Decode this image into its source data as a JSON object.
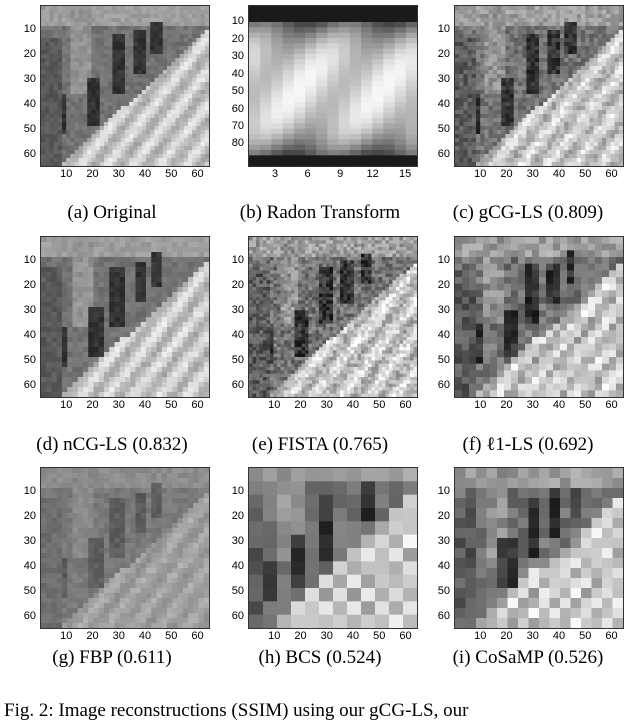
{
  "figure": {
    "caption": "Fig. 2: Image reconstructions (SSIM) using our gCG-LS, our",
    "panels": [
      {
        "key": "a",
        "caption": "(a) Original",
        "type": "image",
        "pattern": "orig",
        "yticks": [
          "10",
          "20",
          "30",
          "40",
          "50",
          "60"
        ],
        "xticks": [
          "10",
          "20",
          "30",
          "40",
          "50",
          "60"
        ]
      },
      {
        "key": "b",
        "caption": "(b) Radon Transform",
        "type": "image",
        "pattern": "radon",
        "yticks": [
          "10",
          "20",
          "30",
          "40",
          "50",
          "60",
          "70",
          "80"
        ],
        "xticks": [
          "3",
          "6",
          "9",
          "12",
          "15"
        ]
      },
      {
        "key": "c",
        "caption": "(c) gCG-LS (0.809)",
        "type": "image",
        "pattern": "recon",
        "yticks": [
          "10",
          "20",
          "30",
          "40",
          "50",
          "60"
        ],
        "xticks": [
          "10",
          "20",
          "30",
          "40",
          "50",
          "60"
        ]
      },
      {
        "key": "d",
        "caption": "(d) nCG-LS (0.832)",
        "type": "image",
        "pattern": "smooth",
        "yticks": [
          "10",
          "20",
          "30",
          "40",
          "50",
          "60"
        ],
        "xticks": [
          "10",
          "20",
          "30",
          "40",
          "50",
          "60"
        ]
      },
      {
        "key": "e",
        "caption": "(e) FISTA (0.765)",
        "type": "image",
        "pattern": "noisy",
        "yticks": [
          "10",
          "20",
          "30",
          "40",
          "50",
          "60"
        ],
        "xticks": [
          "10",
          "20",
          "30",
          "40",
          "50",
          "60"
        ]
      },
      {
        "key": "f",
        "caption": "(f) ℓ1-LS (0.692)",
        "type": "image",
        "pattern": "blocky",
        "yticks": [
          "10",
          "20",
          "30",
          "40",
          "50",
          "60"
        ],
        "xticks": [
          "10",
          "20",
          "30",
          "40",
          "50",
          "60"
        ]
      },
      {
        "key": "g",
        "caption": "(g) FBP (0.611)",
        "type": "image",
        "pattern": "fbp",
        "yticks": [
          "10",
          "20",
          "30",
          "40",
          "50",
          "60"
        ],
        "xticks": [
          "10",
          "20",
          "30",
          "40",
          "50",
          "60"
        ]
      },
      {
        "key": "h",
        "caption": "(h) BCS (0.524)",
        "type": "image",
        "pattern": "bcs",
        "yticks": [
          "10",
          "20",
          "30",
          "40",
          "50",
          "60"
        ],
        "xticks": [
          "10",
          "20",
          "30",
          "40",
          "50",
          "60"
        ]
      },
      {
        "key": "i",
        "caption": "(i) CoSaMP (0.526)",
        "type": "image",
        "pattern": "cosamp",
        "yticks": [
          "10",
          "20",
          "30",
          "40",
          "50",
          "60"
        ],
        "xticks": [
          "10",
          "20",
          "30",
          "40",
          "50",
          "60"
        ]
      }
    ]
  }
}
